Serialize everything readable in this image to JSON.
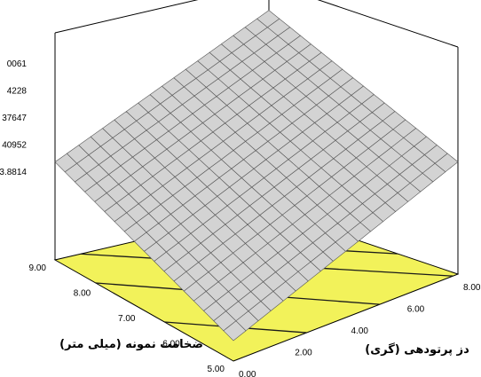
{
  "chart_data": {
    "type": "surface-3d",
    "title": "",
    "z_tick_labels": [
      "3.8814",
      "40952",
      "37647",
      "4228",
      "0061"
    ],
    "x_axis": {
      "label": "دز پرتودهی (گری)",
      "ticks": [
        "0.00",
        "2.00",
        "4.00",
        "6.00",
        "8.00"
      ],
      "values": [
        0,
        2,
        4,
        6,
        8
      ],
      "range": [
        0,
        8
      ]
    },
    "y_axis": {
      "label": "ضخامت نمونه (میلی متر)",
      "ticks": [
        "5.00",
        "6.00",
        "7.00",
        "8.00",
        "9.00"
      ],
      "values": [
        5,
        6,
        7,
        8,
        9
      ],
      "range": [
        5,
        9
      ]
    },
    "surface": {
      "type": "plane",
      "grid_divisions": 18,
      "z_corners_normalized": {
        "x0_y5": 0.1,
        "x8_y5": 0.55,
        "x0_y9": 0.48,
        "x8_y9": 0.98
      }
    },
    "floor_contours": 5,
    "colors": {
      "floor": "#f2f25a",
      "surface": "#d3d3d3",
      "mesh": "#555555",
      "contour": "#1a1a1a",
      "frame": "#000000"
    }
  }
}
